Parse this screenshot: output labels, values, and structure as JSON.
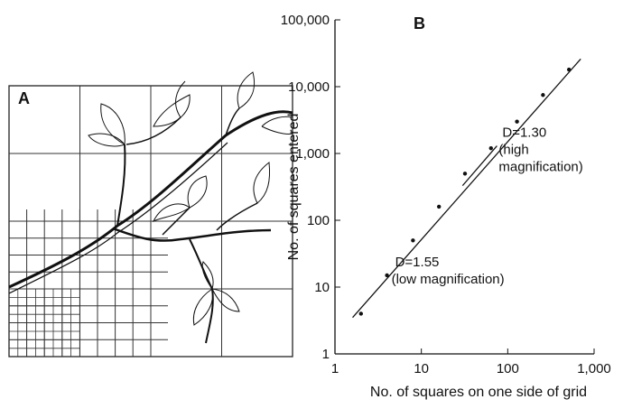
{
  "panel_a": {
    "label": "A"
  },
  "chart_data": {
    "type": "scatter",
    "title": "B",
    "x": [
      2,
      4,
      8,
      16,
      32,
      64,
      128,
      256,
      512
    ],
    "values": [
      4,
      15,
      50,
      160,
      500,
      1200,
      3000,
      7500,
      18000
    ],
    "color": "#111111",
    "xscale": "log",
    "yscale": "log",
    "xlim": [
      1,
      1000
    ],
    "ylim": [
      1,
      100000
    ],
    "xticks": [
      1,
      10,
      100,
      {
        "value": 1000,
        "label": "1,000"
      }
    ],
    "yticks": [
      1,
      10,
      100,
      {
        "value": 1000,
        "label": "1,000"
      },
      {
        "value": 10000,
        "label": "10,000"
      },
      {
        "value": 100000,
        "label": "100,000"
      }
    ],
    "xlabel": "No. of squares on one side of grid",
    "ylabel": "No. of squares entered",
    "fit_lines": [
      {
        "x": [
          1.6,
          700
        ],
        "values": [
          3.5,
          26000
        ]
      },
      {
        "x": [
          30,
          75
        ],
        "values": [
          330,
          1300
        ]
      }
    ],
    "annotations": [
      {
        "x": 75,
        "y": 1300,
        "lines": [
          "D=1.30",
          "(high",
          "magnification)"
        ]
      },
      {
        "x": 4.3,
        "y": 15,
        "lines": [
          "D=1.55",
          "(low magnification)"
        ]
      }
    ]
  }
}
